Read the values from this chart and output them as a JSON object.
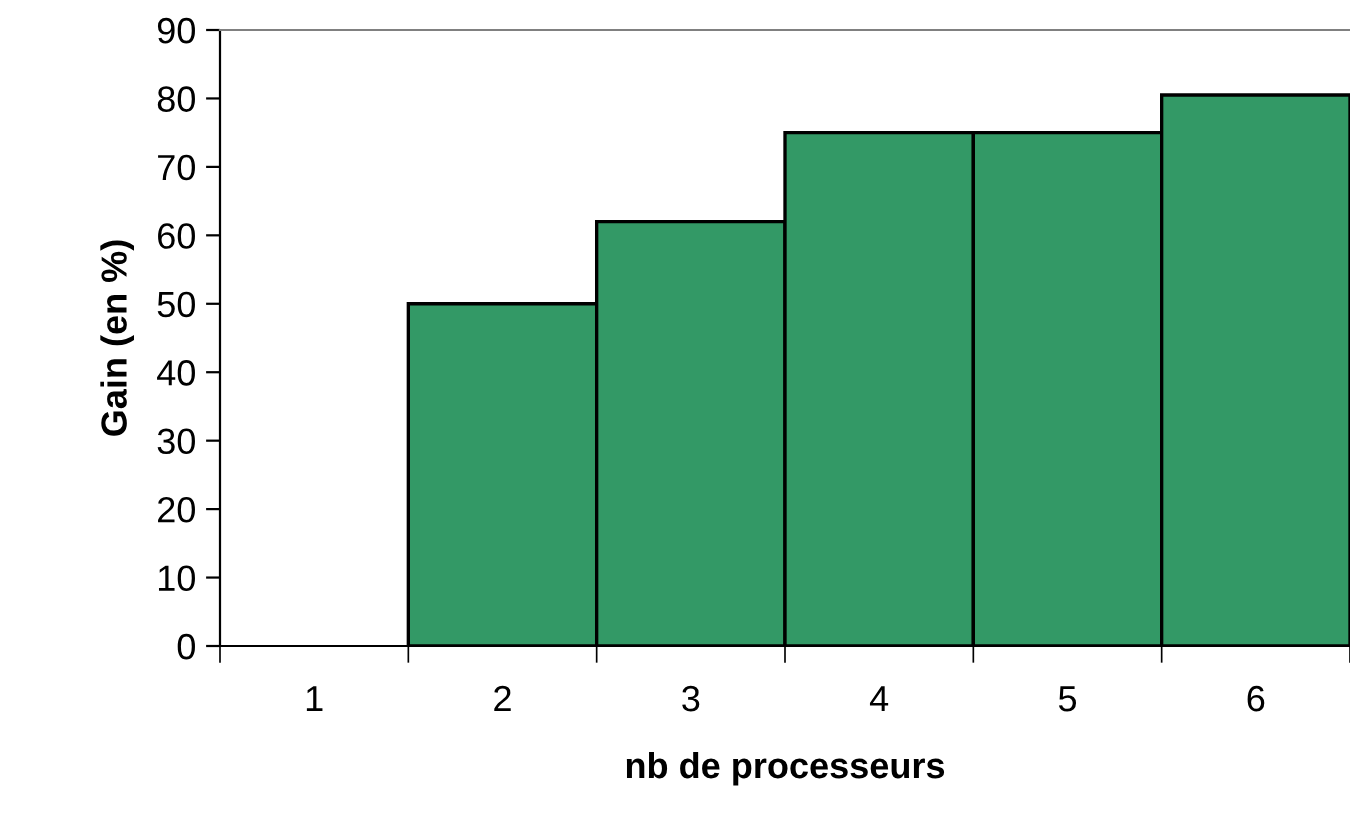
{
  "chart_data": {
    "type": "bar",
    "xlabel": "nb de processeurs",
    "ylabel": "Gain (en %)",
    "categories": [
      "1",
      "2",
      "3",
      "4",
      "5",
      "6"
    ],
    "values": [
      null,
      50,
      62,
      75,
      75,
      80.5
    ],
    "color": "#339966",
    "ylim": [
      0,
      90
    ],
    "yticks": [
      0,
      10,
      20,
      30,
      40,
      50,
      60,
      70,
      80,
      90
    ],
    "grid": false,
    "legend": false
  }
}
